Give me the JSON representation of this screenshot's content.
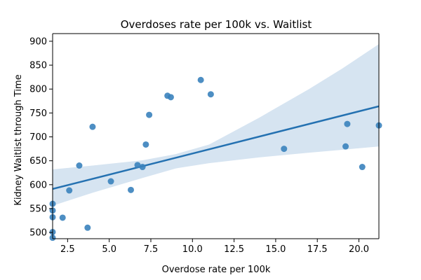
{
  "chart_data": {
    "type": "scatter",
    "title": "Overdoses rate per 100k vs. Waitlist",
    "xlabel": "Overdose rate per 100k",
    "ylabel": "Kidney Waitlist through Time",
    "xlim": [
      1.6,
      21.2
    ],
    "ylim": [
      487,
      916
    ],
    "x_ticks": [
      2.5,
      5.0,
      7.5,
      10.0,
      12.5,
      15.0,
      17.5,
      20.0
    ],
    "x_tick_labels": [
      "2.5",
      "5.0",
      "7.5",
      "10.0",
      "12.5",
      "15.0",
      "17.5",
      "20.0"
    ],
    "y_ticks": [
      500,
      550,
      600,
      650,
      700,
      750,
      800,
      850,
      900
    ],
    "y_tick_labels": [
      "500",
      "550",
      "600",
      "650",
      "700",
      "750",
      "800",
      "850",
      "900"
    ],
    "grid": false,
    "points": {
      "x": [
        1.6,
        1.6,
        1.6,
        1.6,
        1.6,
        2.2,
        2.6,
        3.2,
        3.7,
        4.0,
        5.1,
        6.3,
        6.7,
        7.0,
        7.2,
        7.4,
        8.5,
        8.7,
        10.5,
        11.1,
        15.5,
        19.2,
        19.3,
        20.2,
        21.2
      ],
      "y": [
        560,
        546,
        532,
        501,
        489,
        531,
        588,
        640,
        510,
        721,
        607,
        589,
        641,
        637,
        684,
        746,
        786,
        783,
        819,
        789,
        675,
        680,
        727,
        637,
        724
      ]
    },
    "regression": {
      "x": [
        1.6,
        21.2
      ],
      "y": [
        591,
        764
      ]
    },
    "confidence_band": {
      "x": [
        1.6,
        4.0,
        7.0,
        9.0,
        11.0,
        14.0,
        17.0,
        19.0,
        21.2
      ],
      "upper": [
        632,
        640,
        651,
        664,
        684,
        740,
        800,
        843,
        894
      ],
      "lower": [
        556,
        583,
        614,
        634,
        645,
        657,
        667,
        673,
        680
      ]
    },
    "colors": {
      "points": "#3a82bd",
      "line": "#2471b1",
      "band": "#d6e4f1"
    }
  }
}
